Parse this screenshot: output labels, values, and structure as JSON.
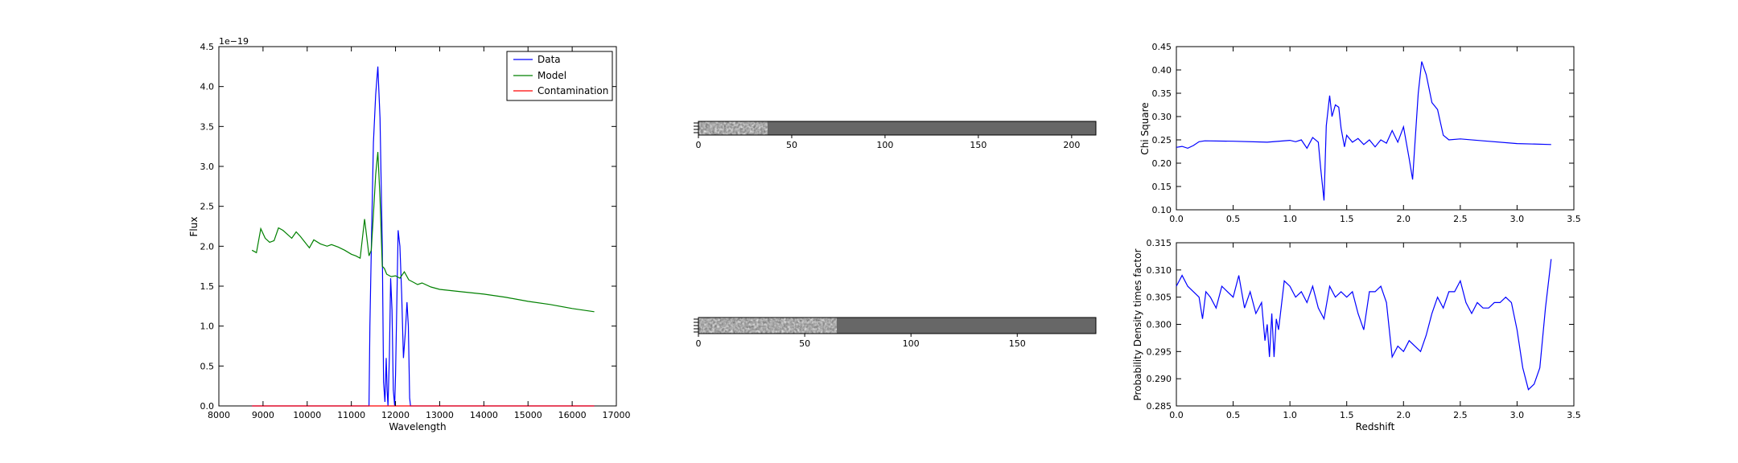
{
  "colors": {
    "data": "#0000ff",
    "model": "#008000",
    "contamination": "#ff0000",
    "frame": "#000000",
    "image_bg": "#676767"
  },
  "chart_data": [
    {
      "type": "line",
      "xlabel": "Wavelength",
      "ylabel": "Flux",
      "offset_text": "1e−19",
      "xlim": [
        8000,
        17000
      ],
      "ylim": [
        0,
        4.5
      ],
      "xticks": [
        8000,
        9000,
        10000,
        11000,
        12000,
        13000,
        14000,
        15000,
        16000,
        17000
      ],
      "xtick_labels": [
        "8000",
        "9000",
        "10000",
        "11000",
        "12000",
        "13000",
        "14000",
        "15000",
        "16000",
        "17000"
      ],
      "yticks": [
        0,
        0.5,
        1.0,
        1.5,
        2.0,
        2.5,
        3.0,
        3.5,
        4.0,
        4.5
      ],
      "ytick_labels": [
        "0.0",
        "0.5",
        "1.0",
        "1.5",
        "2.0",
        "2.5",
        "3.0",
        "3.5",
        "4.0",
        "4.5"
      ],
      "legend": {
        "position": "upper-right",
        "entries": [
          "Data",
          "Model",
          "Contamination"
        ]
      },
      "series": [
        {
          "name": "Data",
          "color": "#0000ff",
          "x": [
            8750,
            11400,
            11420,
            11460,
            11500,
            11550,
            11600,
            11650,
            11700,
            11730,
            11760,
            11790,
            11810,
            11830,
            11860,
            11890,
            11920,
            11950,
            11980,
            12000,
            12030,
            12060,
            12100,
            12140,
            12180,
            12220,
            12260,
            12290,
            12320,
            12340,
            16500
          ],
          "y": [
            0,
            0,
            1.0,
            2.2,
            3.3,
            3.9,
            4.25,
            3.6,
            2.0,
            0.3,
            0.05,
            0.6,
            0.2,
            0.0,
            0.6,
            1.6,
            1.2,
            0.2,
            0.0,
            0.4,
            1.3,
            2.2,
            2.0,
            1.4,
            0.6,
            0.9,
            1.3,
            1.0,
            0.1,
            0,
            0
          ]
        },
        {
          "name": "Model",
          "color": "#008000",
          "x": [
            8750,
            8850,
            8950,
            9050,
            9150,
            9250,
            9350,
            9450,
            9550,
            9650,
            9750,
            9850,
            9950,
            10050,
            10150,
            10300,
            10450,
            10550,
            10700,
            10850,
            11000,
            11100,
            11200,
            11300,
            11400,
            11450,
            11500,
            11550,
            11600,
            11650,
            11700,
            11750,
            11800,
            11900,
            12000,
            12100,
            12200,
            12300,
            12400,
            12500,
            12600,
            12800,
            13000,
            13500,
            14000,
            14500,
            15000,
            15500,
            16000,
            16500
          ],
          "y": [
            1.95,
            1.92,
            2.22,
            2.1,
            2.05,
            2.07,
            2.23,
            2.2,
            2.15,
            2.1,
            2.18,
            2.12,
            2.05,
            1.98,
            2.08,
            2.03,
            2.0,
            2.02,
            1.99,
            1.95,
            1.9,
            1.88,
            1.85,
            2.34,
            1.88,
            1.95,
            2.4,
            2.9,
            3.18,
            2.6,
            1.75,
            1.72,
            1.65,
            1.62,
            1.63,
            1.6,
            1.68,
            1.58,
            1.55,
            1.52,
            1.54,
            1.49,
            1.46,
            1.43,
            1.4,
            1.36,
            1.31,
            1.27,
            1.22,
            1.18
          ]
        },
        {
          "name": "Contamination",
          "color": "#ff0000",
          "x": [
            8750,
            16500
          ],
          "y": [
            0,
            0
          ]
        }
      ]
    },
    {
      "type": "heatmap",
      "xlim": [
        0,
        213
      ],
      "xticks": [
        0,
        50,
        100,
        150,
        200
      ],
      "xtick_labels": [
        "0",
        "50",
        "100",
        "150",
        "200"
      ],
      "texture_extent": 37
    },
    {
      "type": "heatmap",
      "xlim": [
        0,
        187
      ],
      "xticks": [
        0,
        50,
        100,
        150
      ],
      "xtick_labels": [
        "0",
        "50",
        "100",
        "150"
      ],
      "texture_extent": 65
    },
    {
      "type": "line",
      "xlabel": "",
      "ylabel": "Chi Square",
      "xlim": [
        0,
        3.5
      ],
      "ylim": [
        0.1,
        0.45
      ],
      "xticks": [
        0,
        0.5,
        1.0,
        1.5,
        2.0,
        2.5,
        3.0,
        3.5
      ],
      "xtick_labels": [
        "0.0",
        "0.5",
        "1.0",
        "1.5",
        "2.0",
        "2.5",
        "3.0",
        "3.5"
      ],
      "yticks": [
        0.1,
        0.15,
        0.2,
        0.25,
        0.3,
        0.35,
        0.4,
        0.45
      ],
      "ytick_labels": [
        "0.10",
        "0.15",
        "0.20",
        "0.25",
        "0.30",
        "0.35",
        "0.40",
        "0.45"
      ],
      "series": [
        {
          "color": "#0000ff",
          "x": [
            0.0,
            0.05,
            0.1,
            0.15,
            0.2,
            0.25,
            0.5,
            0.8,
            1.0,
            1.05,
            1.1,
            1.15,
            1.2,
            1.25,
            1.27,
            1.3,
            1.32,
            1.35,
            1.37,
            1.4,
            1.43,
            1.45,
            1.48,
            1.5,
            1.55,
            1.6,
            1.65,
            1.7,
            1.75,
            1.8,
            1.85,
            1.9,
            1.95,
            2.0,
            2.05,
            2.08,
            2.1,
            2.13,
            2.16,
            2.2,
            2.25,
            2.3,
            2.35,
            2.4,
            2.5,
            2.7,
            3.0,
            3.3
          ],
          "y": [
            0.234,
            0.236,
            0.232,
            0.238,
            0.246,
            0.248,
            0.247,
            0.245,
            0.249,
            0.246,
            0.25,
            0.232,
            0.255,
            0.245,
            0.19,
            0.12,
            0.28,
            0.345,
            0.3,
            0.325,
            0.32,
            0.275,
            0.235,
            0.26,
            0.245,
            0.253,
            0.24,
            0.25,
            0.235,
            0.25,
            0.243,
            0.27,
            0.245,
            0.278,
            0.21,
            0.165,
            0.24,
            0.35,
            0.418,
            0.39,
            0.33,
            0.315,
            0.26,
            0.25,
            0.252,
            0.248,
            0.242,
            0.24
          ]
        }
      ]
    },
    {
      "type": "line",
      "xlabel": "Redshift",
      "ylabel": "Probability Density times factor",
      "xlim": [
        0,
        3.5
      ],
      "ylim": [
        0.285,
        0.315
      ],
      "xticks": [
        0,
        0.5,
        1.0,
        1.5,
        2.0,
        2.5,
        3.0,
        3.5
      ],
      "xtick_labels": [
        "0.0",
        "0.5",
        "1.0",
        "1.5",
        "2.0",
        "2.5",
        "3.0",
        "3.5"
      ],
      "yticks": [
        0.285,
        0.29,
        0.295,
        0.3,
        0.305,
        0.31,
        0.315
      ],
      "ytick_labels": [
        "0.285",
        "0.290",
        "0.295",
        "0.300",
        "0.305",
        "0.310",
        "0.315"
      ],
      "series": [
        {
          "color": "#0000ff",
          "x": [
            0.0,
            0.05,
            0.1,
            0.15,
            0.2,
            0.23,
            0.26,
            0.3,
            0.35,
            0.4,
            0.45,
            0.5,
            0.55,
            0.6,
            0.65,
            0.7,
            0.75,
            0.78,
            0.8,
            0.82,
            0.84,
            0.86,
            0.88,
            0.9,
            0.95,
            1.0,
            1.05,
            1.1,
            1.15,
            1.2,
            1.25,
            1.3,
            1.35,
            1.4,
            1.45,
            1.5,
            1.55,
            1.6,
            1.65,
            1.7,
            1.75,
            1.8,
            1.85,
            1.9,
            1.95,
            2.0,
            2.05,
            2.1,
            2.15,
            2.2,
            2.25,
            2.3,
            2.35,
            2.4,
            2.45,
            2.5,
            2.55,
            2.6,
            2.65,
            2.7,
            2.75,
            2.8,
            2.85,
            2.9,
            2.95,
            3.0,
            3.05,
            3.1,
            3.15,
            3.2,
            3.25,
            3.3
          ],
          "y": [
            0.307,
            0.309,
            0.307,
            0.306,
            0.305,
            0.301,
            0.306,
            0.305,
            0.303,
            0.307,
            0.306,
            0.305,
            0.309,
            0.303,
            0.306,
            0.302,
            0.304,
            0.297,
            0.3,
            0.294,
            0.302,
            0.294,
            0.301,
            0.299,
            0.308,
            0.307,
            0.305,
            0.306,
            0.304,
            0.307,
            0.303,
            0.301,
            0.307,
            0.305,
            0.306,
            0.305,
            0.306,
            0.302,
            0.299,
            0.306,
            0.306,
            0.307,
            0.304,
            0.294,
            0.296,
            0.295,
            0.297,
            0.296,
            0.295,
            0.298,
            0.302,
            0.305,
            0.303,
            0.306,
            0.306,
            0.308,
            0.304,
            0.302,
            0.304,
            0.303,
            0.303,
            0.304,
            0.304,
            0.305,
            0.304,
            0.299,
            0.292,
            0.288,
            0.289,
            0.292,
            0.303,
            0.312
          ]
        }
      ]
    }
  ]
}
